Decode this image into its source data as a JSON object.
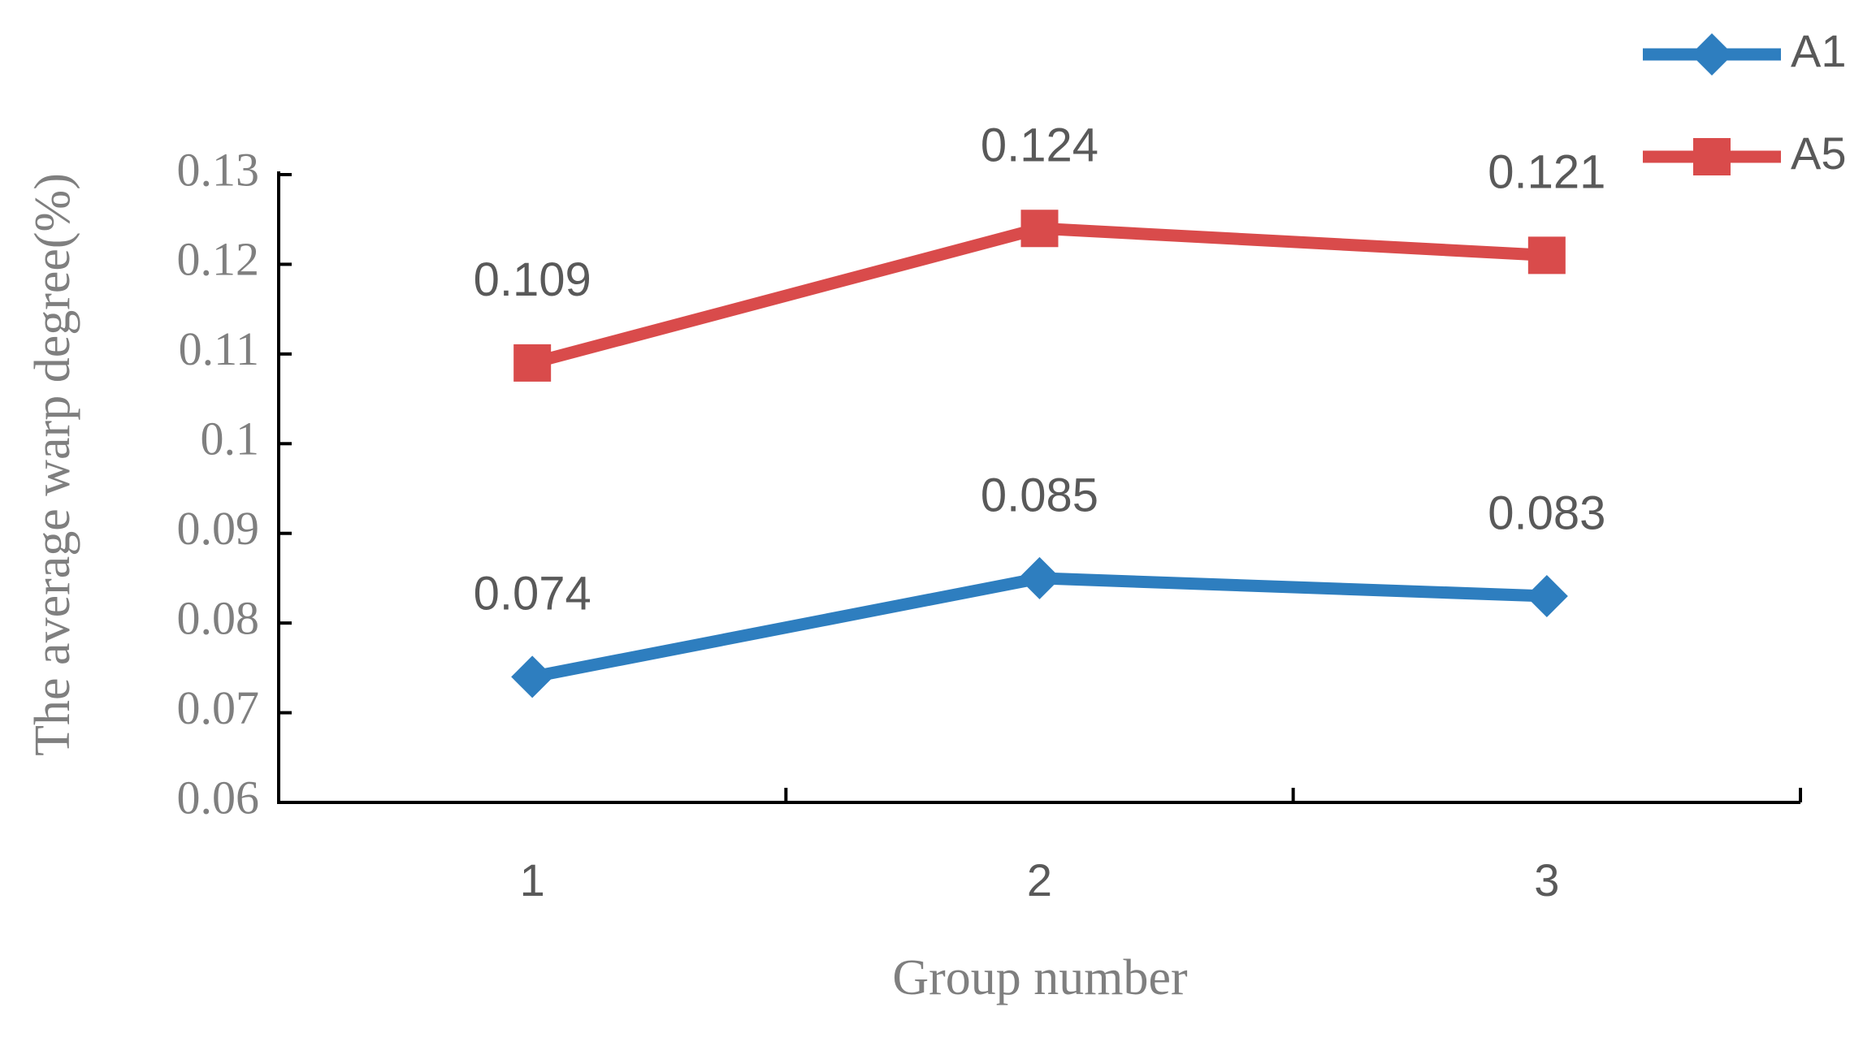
{
  "chart_data": {
    "type": "line",
    "x_label": "Group number",
    "y_label": "The average warp degree(%)",
    "categories": [
      "1",
      "2",
      "3"
    ],
    "series": [
      {
        "name": "A1",
        "color": "#2e7ebf",
        "marker": "diamond",
        "values": [
          0.074,
          0.085,
          0.083
        ]
      },
      {
        "name": "A5",
        "color": "#d94b4b",
        "marker": "square",
        "values": [
          0.109,
          0.124,
          0.121
        ]
      }
    ],
    "ylim": [
      0.06,
      0.13
    ],
    "yticks": [
      0.06,
      0.07,
      0.08,
      0.09,
      0.1,
      0.11,
      0.12,
      0.13
    ],
    "grid": false,
    "legend": "top-right"
  }
}
